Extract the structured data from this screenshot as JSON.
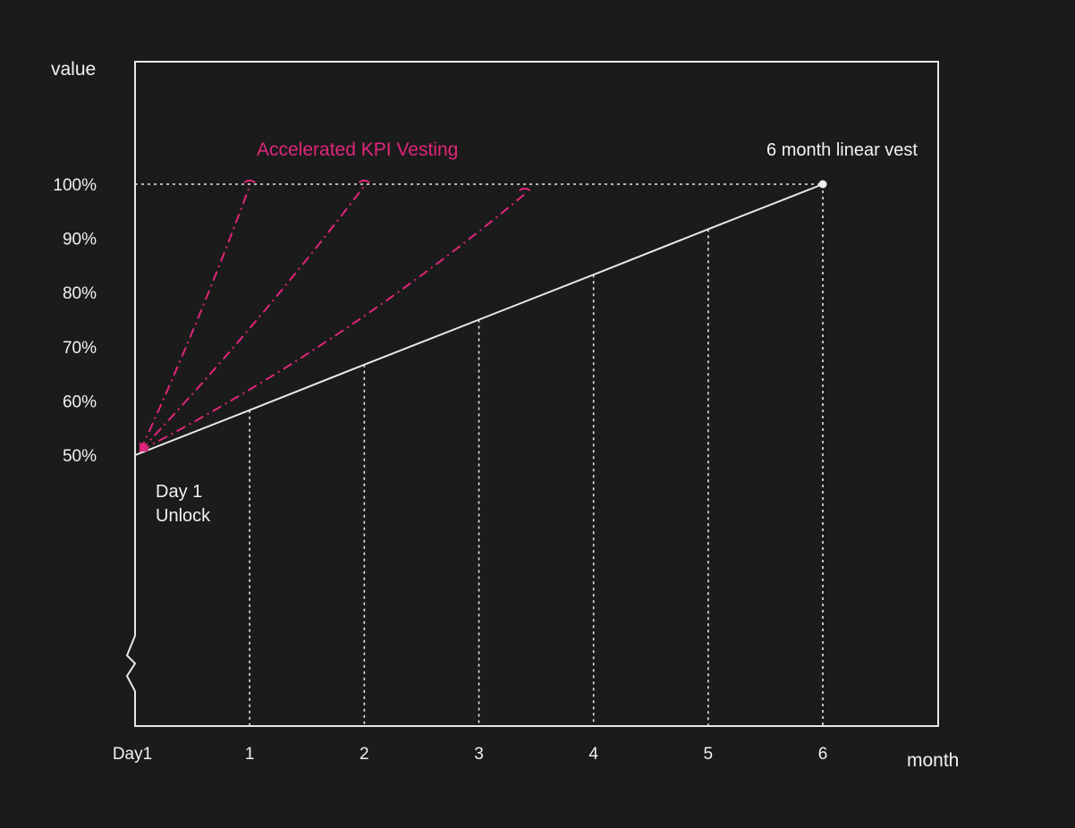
{
  "chart_data": {
    "type": "line",
    "xlabel": "month",
    "ylabel": "value",
    "x_ticks": [
      "Day1",
      "1",
      "2",
      "3",
      "4",
      "5",
      "6"
    ],
    "y_ticks": [
      "100%",
      "90%",
      "80%",
      "70%",
      "60%",
      "50%"
    ],
    "ylim": [
      50,
      100
    ],
    "xlim": [
      0,
      7
    ],
    "y_axis_break": true,
    "series": [
      {
        "name": "6 month linear vest",
        "x": [
          0,
          1,
          2,
          3,
          4,
          5,
          6
        ],
        "y": [
          50,
          58.3,
          66.7,
          75,
          83.3,
          91.7,
          100
        ],
        "color": "#e8e8e8"
      }
    ],
    "kpi_group": {
      "label": "Accelerated KPI Vesting",
      "color": "#e0267a",
      "curves": [
        {
          "x": [
            0,
            1
          ],
          "y": [
            50,
            100
          ]
        },
        {
          "x": [
            0,
            2
          ],
          "y": [
            50,
            100
          ]
        },
        {
          "x": [
            0,
            3.4
          ],
          "y": [
            50,
            100
          ]
        }
      ]
    },
    "annotations": [
      {
        "lines": [
          "Day 1",
          "Unlock"
        ],
        "x": 0,
        "y": 50
      }
    ]
  }
}
